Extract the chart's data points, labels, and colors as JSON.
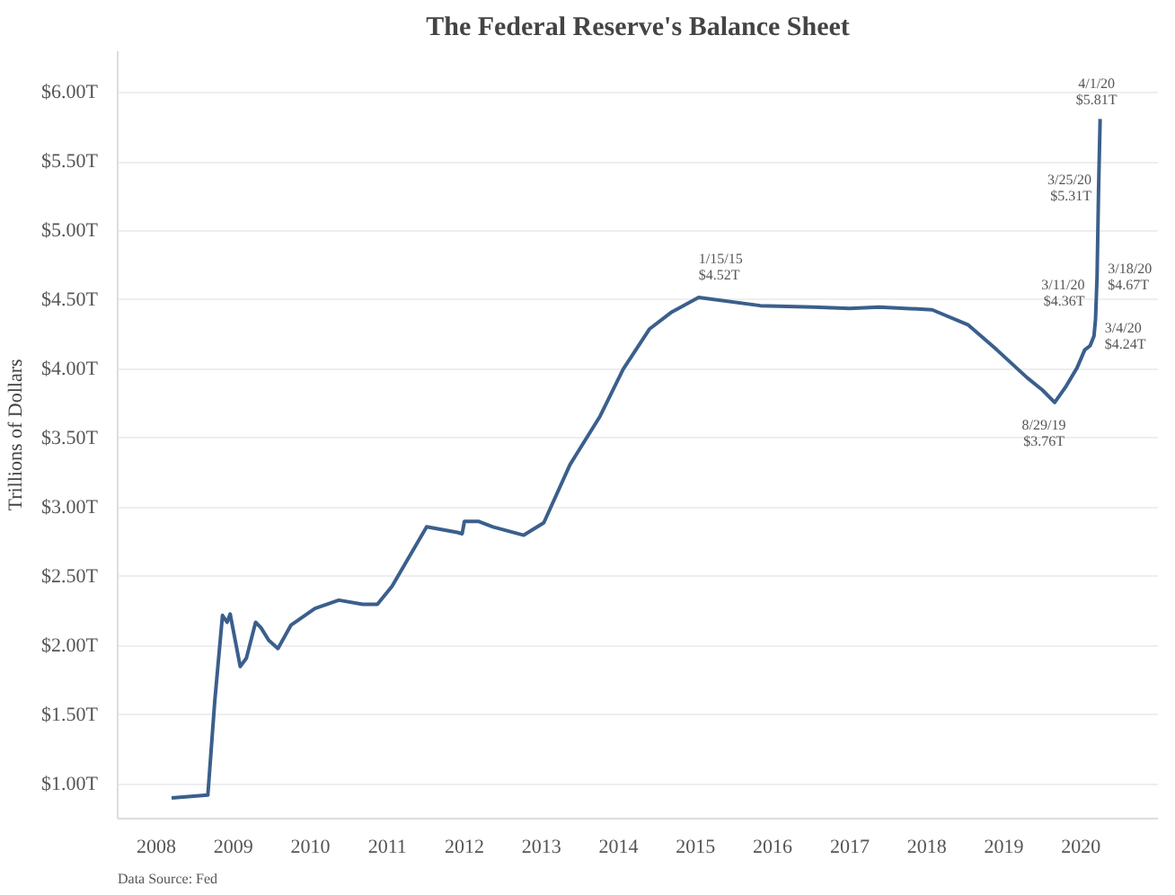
{
  "chart_data": {
    "type": "line",
    "title": "The Federal Reserve's Balance Sheet",
    "ylabel": "Trillions of Dollars",
    "x": [
      2008.2,
      2008.67,
      2008.76,
      2008.86,
      2008.92,
      2008.96,
      2009.09,
      2009.17,
      2009.29,
      2009.36,
      2009.46,
      2009.58,
      2009.75,
      2010.06,
      2010.37,
      2010.68,
      2010.87,
      2011.06,
      2011.51,
      2011.91,
      2011.97,
      2012.0,
      2012.18,
      2012.37,
      2012.77,
      2013.03,
      2013.37,
      2013.76,
      2014.06,
      2014.4,
      2014.68,
      2015.04,
      2015.84,
      2016.53,
      2017.0,
      2017.38,
      2018.07,
      2018.54,
      2018.91,
      2019.3,
      2019.5,
      2019.66,
      2019.8,
      2019.95,
      2020.05,
      2020.12,
      2020.17,
      2020.19,
      2020.21,
      2020.23,
      2020.25
    ],
    "series": [
      {
        "color": "#3b5f8c",
        "values": [
          0.9,
          0.92,
          1.6,
          2.22,
          2.17,
          2.23,
          1.85,
          1.91,
          2.17,
          2.13,
          2.04,
          1.98,
          2.15,
          2.27,
          2.33,
          2.3,
          2.3,
          2.43,
          2.86,
          2.82,
          2.81,
          2.9,
          2.9,
          2.86,
          2.8,
          2.89,
          3.31,
          3.66,
          4.0,
          4.29,
          4.41,
          4.52,
          4.46,
          4.45,
          4.44,
          4.45,
          4.43,
          4.32,
          4.14,
          3.94,
          3.85,
          3.76,
          3.87,
          4.01,
          4.14,
          4.17,
          4.24,
          4.36,
          4.67,
          5.31,
          5.81
        ]
      }
    ],
    "xlim": [
      2007.5,
      2021.0
    ],
    "xticks": [
      2008,
      2009,
      2010,
      2011,
      2012,
      2013,
      2014,
      2015,
      2016,
      2017,
      2018,
      2019,
      2020
    ],
    "ylim": [
      0.75,
      6.3
    ],
    "yticks": [
      {
        "value": 1,
        "label": "$1.00T"
      },
      {
        "value": 1.5,
        "label": "$1.50T"
      },
      {
        "value": 2,
        "label": "$2.00T"
      },
      {
        "value": 2.5,
        "label": "$2.50T"
      },
      {
        "value": 3,
        "label": "$3.00T"
      },
      {
        "value": 3.5,
        "label": "$3.50T"
      },
      {
        "value": 4,
        "label": "$4.00T"
      },
      {
        "value": 4.5,
        "label": "$4.50T"
      },
      {
        "value": 5,
        "label": "$5.00T"
      },
      {
        "value": 5.5,
        "label": "$5.50T"
      },
      {
        "value": 6,
        "label": "$6.00T"
      }
    ],
    "grid": "y",
    "marker": "none",
    "line_style": "solid",
    "annotations": [
      {
        "text": "1/15/15\n$4.52T",
        "x": 2015.04,
        "y": 4.52
      },
      {
        "text": "8/29/19\n$3.76T",
        "x": 2019.66,
        "y": 3.76
      },
      {
        "text": "3/4/20\n$4.24T",
        "x": 2020.17,
        "y": 4.24
      },
      {
        "text": "3/11/20\n$4.36T",
        "x": 2020.19,
        "y": 4.36
      },
      {
        "text": "3/18/20\n$4.67T",
        "x": 2020.21,
        "y": 4.67
      },
      {
        "text": "3/25/20\n$5.31T",
        "x": 2020.23,
        "y": 5.31
      },
      {
        "text": "4/1/20\n$5.81T",
        "x": 2020.25,
        "y": 5.81
      },
      "Data Source: Fed"
    ]
  }
}
